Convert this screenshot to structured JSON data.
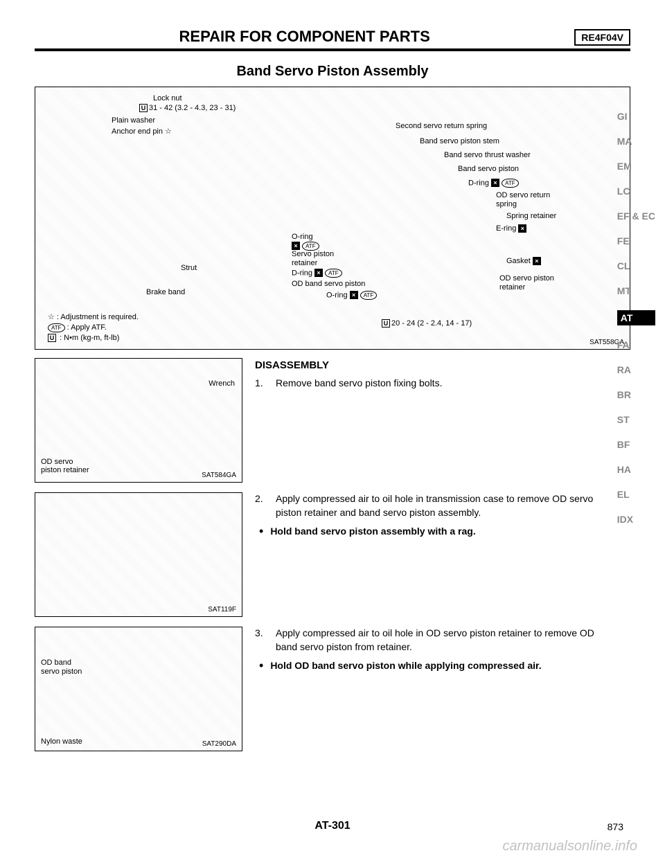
{
  "header": {
    "title": "REPAIR FOR COMPONENT PARTS",
    "code": "RE4F04V"
  },
  "section_title": "Band Servo Piston Assembly",
  "main_diagram": {
    "ref": "SAT558GA",
    "labels": {
      "lock_nut": "Lock nut",
      "torque1": "31 - 42 (3.2 - 4.3, 23 - 31)",
      "plain_washer": "Plain washer",
      "anchor_end_pin": "Anchor end pin ☆",
      "strut": "Strut",
      "brake_band": "Brake band",
      "second_servo_spring": "Second servo return spring",
      "band_servo_piston_stem": "Band servo piston stem",
      "band_servo_thrust_washer": "Band servo thrust washer",
      "band_servo_piston": "Band servo piston",
      "d_ring": "D-ring",
      "od_servo_return_spring": "OD servo return spring",
      "spring_retainer": "Spring retainer",
      "e_ring": "E-ring",
      "o_ring_top": "O-ring",
      "servo_piston_retainer": "Servo piston retainer",
      "d_ring2": "D-ring",
      "od_band_servo_piston": "OD band servo piston",
      "o_ring_bottom": "O-ring",
      "gasket": "Gasket",
      "od_servo_piston_retainer": "OD servo piston retainer",
      "torque2": "20 - 24 (2 - 2.4, 14 - 17)"
    },
    "legend": {
      "star": "☆ : Adjustment is required.",
      "atf": ": Apply ATF.",
      "torque_unit": ": N•m (kg-m, ft-lb)"
    }
  },
  "steps": {
    "disassembly_heading": "DISASSEMBLY",
    "step1": {
      "num": "1.",
      "text": "Remove band servo piston fixing bolts.",
      "diagram_ref": "SAT584GA",
      "diagram_labels": {
        "wrench": "Wrench",
        "od_servo": "OD servo",
        "piston_retainer": "piston retainer"
      }
    },
    "step2": {
      "num": "2.",
      "text": "Apply compressed air to oil hole in transmission case to remove OD servo piston retainer and band servo piston assembly.",
      "bullet": "Hold band servo piston assembly with a rag.",
      "diagram_ref": "SAT119F"
    },
    "step3": {
      "num": "3.",
      "text": "Apply compressed air to oil hole in OD servo piston retainer to remove OD band servo piston from retainer.",
      "bullet": "Hold OD band servo piston while applying compressed air.",
      "diagram_ref": "SAT290DA",
      "diagram_labels": {
        "od_band": "OD band servo piston",
        "nylon_waste": "Nylon waste"
      }
    }
  },
  "side_tabs": [
    "GI",
    "MA",
    "EM",
    "LC",
    "EF & EC",
    "FE",
    "CL",
    "MT",
    "AT",
    "FA",
    "RA",
    "BR",
    "ST",
    "BF",
    "HA",
    "EL",
    "IDX"
  ],
  "side_tabs_active": "AT",
  "footer": {
    "page_code": "AT-301",
    "page_num": "873"
  },
  "watermark": "carmanualsonline.info",
  "colors": {
    "text": "#000000",
    "bg": "#ffffff",
    "tab_inactive": "#888888",
    "watermark": "rgba(100,100,100,0.4)"
  }
}
